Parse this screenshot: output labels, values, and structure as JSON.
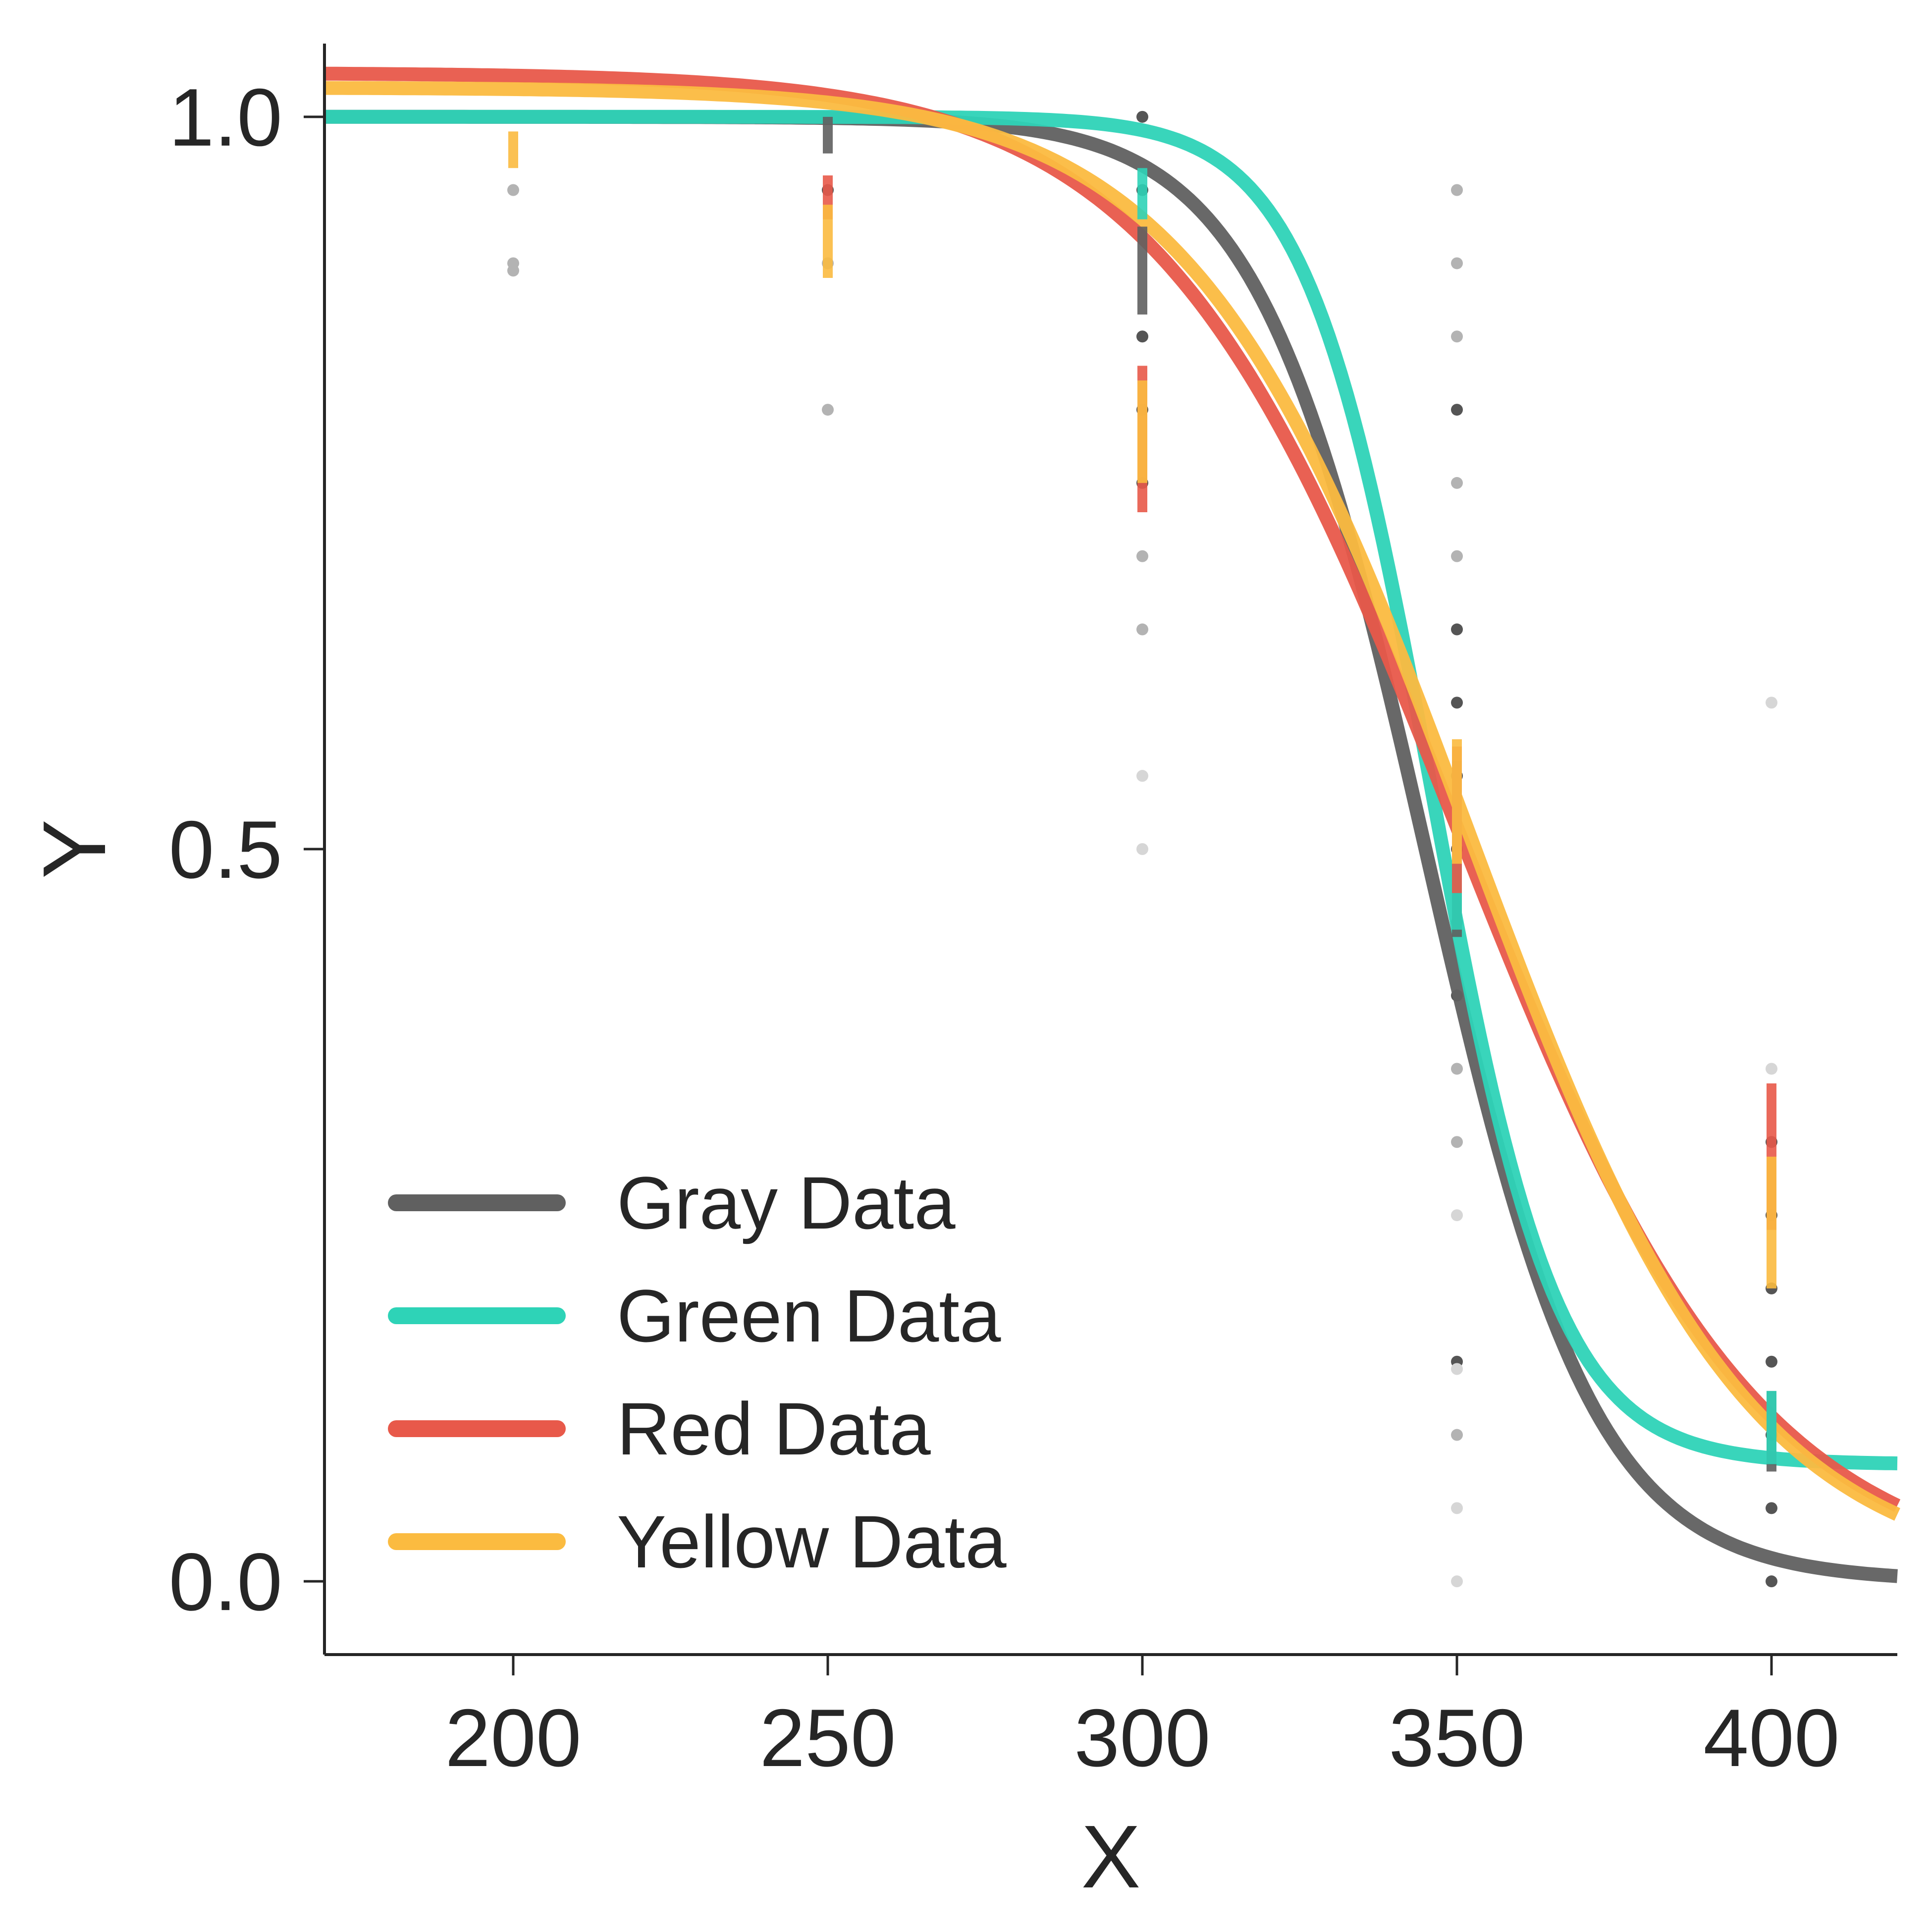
{
  "chart_data": {
    "type": "line",
    "xlabel": "X",
    "ylabel": "Y",
    "xlim": [
      170,
      420
    ],
    "ylim": [
      -0.05,
      1.05
    ],
    "xticks": [
      200,
      250,
      300,
      350,
      400
    ],
    "xtick_labels": [
      "200",
      "250",
      "300",
      "350",
      "400"
    ],
    "yticks": [
      0.0,
      0.5,
      1.0
    ],
    "ytick_labels": [
      "0.0",
      "0.5",
      "1.0"
    ],
    "grid": false,
    "legend_position": "bottom-left",
    "series": [
      {
        "name": "Gray Data",
        "color": "#606060",
        "curve": {
          "x0": 345,
          "k": 0.075,
          "upper": 1.0,
          "lower": 0.0
        },
        "errorbars": [
          {
            "x": 250,
            "low": 0.975,
            "high": 1.0
          },
          {
            "x": 300,
            "low": 0.865,
            "high": 0.925
          },
          {
            "x": 350,
            "low": 0.44,
            "high": 0.56
          },
          {
            "x": 400,
            "low": 0.075,
            "high": 0.13
          }
        ]
      },
      {
        "name": "Green Data",
        "color": "#2ed3b7",
        "curve": {
          "x0": 346,
          "k": 0.1,
          "upper": 1.0,
          "lower": 0.08
        },
        "errorbars": [
          {
            "x": 300,
            "low": 0.93,
            "high": 0.965
          },
          {
            "x": 350,
            "low": 0.445,
            "high": 0.52
          },
          {
            "x": 400,
            "low": 0.08,
            "high": 0.13
          }
        ]
      },
      {
        "name": "Red Data",
        "color": "#e8594a",
        "curve": {
          "x0": 350,
          "k": 0.042,
          "upper": 1.03,
          "lower": 0.0
        },
        "errorbars": [
          {
            "x": 250,
            "low": 0.93,
            "high": 0.96
          },
          {
            "x": 300,
            "low": 0.73,
            "high": 0.83
          },
          {
            "x": 350,
            "low": 0.47,
            "high": 0.57
          },
          {
            "x": 400,
            "low": 0.24,
            "high": 0.34
          }
        ]
      },
      {
        "name": "Yellow Data",
        "color": "#fbbb40",
        "curve": {
          "x0": 352,
          "k": 0.045,
          "upper": 1.02,
          "lower": 0.0
        },
        "errorbars": [
          {
            "x": 200,
            "low": 0.965,
            "high": 0.99
          },
          {
            "x": 250,
            "low": 0.89,
            "high": 0.94
          },
          {
            "x": 300,
            "low": 0.75,
            "high": 0.82
          },
          {
            "x": 350,
            "low": 0.49,
            "high": 0.575
          },
          {
            "x": 400,
            "low": 0.2,
            "high": 0.29
          }
        ]
      }
    ],
    "points": [
      {
        "x": 200,
        "y": 1.0,
        "shade": "dark"
      },
      {
        "x": 200,
        "y": 0.95,
        "shade": "light"
      },
      {
        "x": 200,
        "y": 0.9,
        "shade": "light"
      },
      {
        "x": 200,
        "y": 0.895,
        "shade": "light"
      },
      {
        "x": 250,
        "y": 1.0,
        "shade": "dark"
      },
      {
        "x": 250,
        "y": 0.95,
        "shade": "dark"
      },
      {
        "x": 250,
        "y": 0.9,
        "shade": "light"
      },
      {
        "x": 250,
        "y": 0.8,
        "shade": "light"
      },
      {
        "x": 300,
        "y": 1.0,
        "shade": "dark"
      },
      {
        "x": 300,
        "y": 0.95,
        "shade": "dark"
      },
      {
        "x": 300,
        "y": 0.85,
        "shade": "light"
      },
      {
        "x": 300,
        "y": 0.85,
        "shade": "dark"
      },
      {
        "x": 300,
        "y": 0.8,
        "shade": "dark"
      },
      {
        "x": 300,
        "y": 0.75,
        "shade": "dark"
      },
      {
        "x": 300,
        "y": 0.7,
        "shade": "light"
      },
      {
        "x": 300,
        "y": 0.65,
        "shade": "light"
      },
      {
        "x": 300,
        "y": 0.55,
        "shade": "lighter"
      },
      {
        "x": 300,
        "y": 0.5,
        "shade": "lighter"
      },
      {
        "x": 350,
        "y": 0.95,
        "shade": "light"
      },
      {
        "x": 350,
        "y": 0.9,
        "shade": "light"
      },
      {
        "x": 350,
        "y": 0.85,
        "shade": "light"
      },
      {
        "x": 350,
        "y": 0.8,
        "shade": "dark"
      },
      {
        "x": 350,
        "y": 0.75,
        "shade": "light"
      },
      {
        "x": 350,
        "y": 0.7,
        "shade": "light"
      },
      {
        "x": 350,
        "y": 0.65,
        "shade": "dark"
      },
      {
        "x": 350,
        "y": 0.6,
        "shade": "dark"
      },
      {
        "x": 350,
        "y": 0.55,
        "shade": "dark"
      },
      {
        "x": 350,
        "y": 0.5,
        "shade": "dark"
      },
      {
        "x": 350,
        "y": 0.45,
        "shade": "dark"
      },
      {
        "x": 350,
        "y": 0.4,
        "shade": "dark"
      },
      {
        "x": 350,
        "y": 0.35,
        "shade": "light"
      },
      {
        "x": 350,
        "y": 0.3,
        "shade": "light"
      },
      {
        "x": 350,
        "y": 0.25,
        "shade": "lighter"
      },
      {
        "x": 350,
        "y": 0.15,
        "shade": "dark"
      },
      {
        "x": 350,
        "y": 0.145,
        "shade": "lighter"
      },
      {
        "x": 350,
        "y": 0.1,
        "shade": "light"
      },
      {
        "x": 350,
        "y": 0.05,
        "shade": "lighter"
      },
      {
        "x": 350,
        "y": 0.0,
        "shade": "lighter"
      },
      {
        "x": 400,
        "y": 0.6,
        "shade": "lighter"
      },
      {
        "x": 400,
        "y": 0.35,
        "shade": "lighter"
      },
      {
        "x": 400,
        "y": 0.3,
        "shade": "dark"
      },
      {
        "x": 400,
        "y": 0.25,
        "shade": "dark"
      },
      {
        "x": 400,
        "y": 0.2,
        "shade": "dark"
      },
      {
        "x": 400,
        "y": 0.15,
        "shade": "dark"
      },
      {
        "x": 400,
        "y": 0.1,
        "shade": "dark"
      },
      {
        "x": 400,
        "y": 0.05,
        "shade": "dark"
      },
      {
        "x": 400,
        "y": 0.0,
        "shade": "dark"
      }
    ]
  }
}
